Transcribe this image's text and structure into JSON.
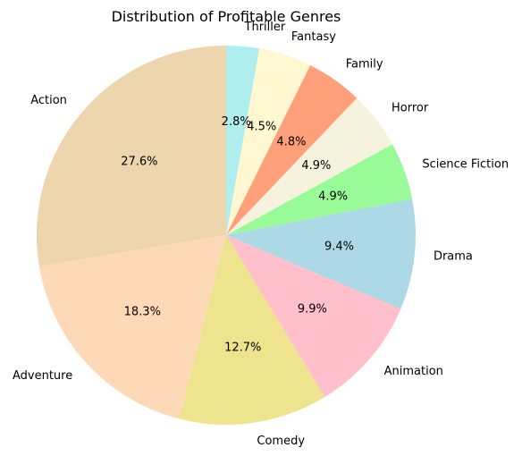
{
  "chart_data": {
    "type": "pie",
    "title": "Distribution of Profitable Genres",
    "slices": [
      {
        "label": "Action",
        "value": 27.6,
        "pct_label": "27.6%",
        "color": "#EDD5AE"
      },
      {
        "label": "Adventure",
        "value": 18.3,
        "pct_label": "18.3%",
        "color": "#FDD9B8"
      },
      {
        "label": "Comedy",
        "value": 12.7,
        "pct_label": "12.7%",
        "color": "#EEE48E"
      },
      {
        "label": "Animation",
        "value": 9.9,
        "pct_label": "9.9%",
        "color": "#FFBFCB"
      },
      {
        "label": "Drama",
        "value": 9.4,
        "pct_label": "9.4%",
        "color": "#ADD8E6"
      },
      {
        "label": "Science Fiction",
        "value": 4.9,
        "pct_label": "4.9%",
        "color": "#98FB98"
      },
      {
        "label": "Horror",
        "value": 4.9,
        "pct_label": "4.9%",
        "color": "#F5F3DD"
      },
      {
        "label": "Family",
        "value": 4.8,
        "pct_label": "4.8%",
        "color": "#FFA07A"
      },
      {
        "label": "Fantasy",
        "value": 4.5,
        "pct_label": "4.5%",
        "color": "#FFF8D0"
      },
      {
        "label": "Thriller",
        "value": 2.8,
        "pct_label": "2.8%",
        "color": "#AEEEEE"
      }
    ],
    "start_angle_deg": 90,
    "direction": "counterclockwise"
  }
}
